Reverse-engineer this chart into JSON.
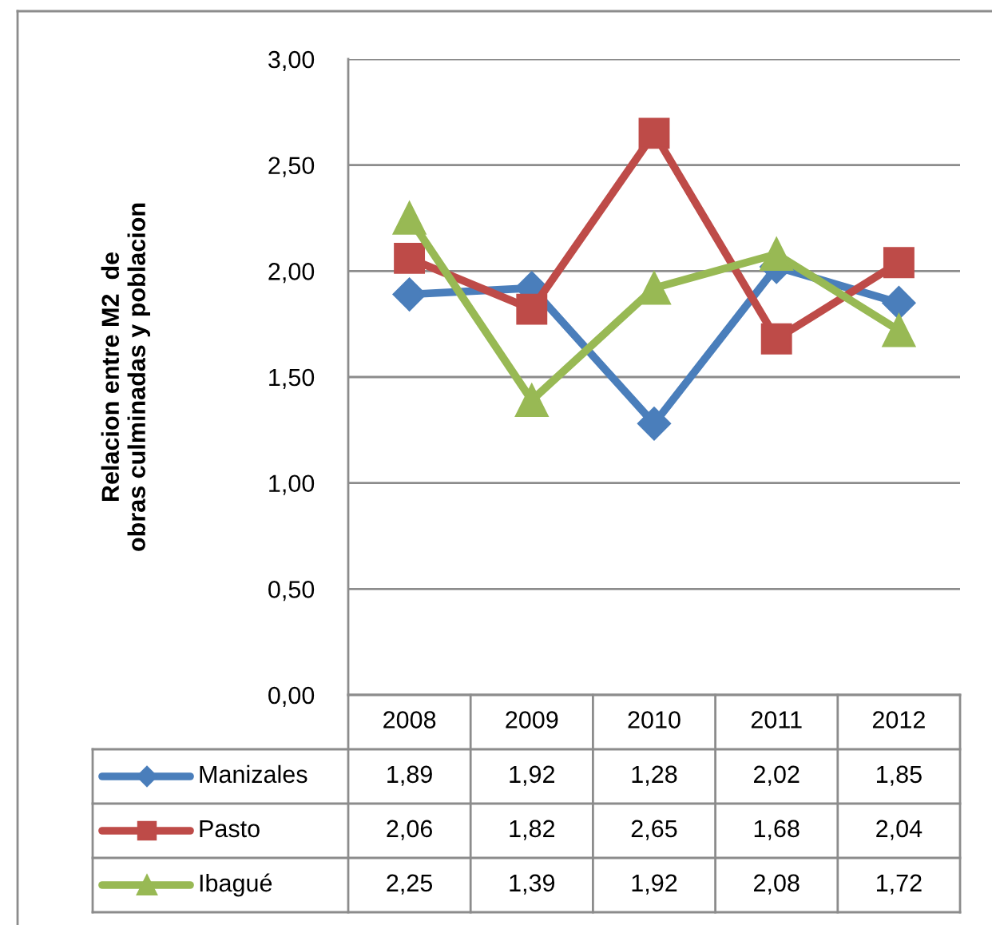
{
  "chart_data": {
    "type": "line",
    "ylabel": "Relacion entre M2  de\nobras culminadas y poblacion",
    "categories": [
      "2008",
      "2009",
      "2010",
      "2011",
      "2012"
    ],
    "series": [
      {
        "name": "Manizales",
        "color": "#4a7ebb",
        "marker": "diamond",
        "values": [
          1.89,
          1.92,
          1.28,
          2.02,
          1.85
        ],
        "value_labels": [
          "1,89",
          "1,92",
          "1,28",
          "2,02",
          "1,85"
        ]
      },
      {
        "name": "Pasto",
        "color": "#be4b48",
        "marker": "square",
        "values": [
          2.06,
          1.82,
          2.65,
          1.68,
          2.04
        ],
        "value_labels": [
          "2,06",
          "1,82",
          "2,65",
          "1,68",
          "2,04"
        ]
      },
      {
        "name": "Ibagué",
        "color": "#98b954",
        "marker": "triangle",
        "values": [
          2.25,
          1.39,
          1.92,
          2.08,
          1.72
        ],
        "value_labels": [
          "2,25",
          "1,39",
          "1,92",
          "2,08",
          "1,72"
        ]
      }
    ],
    "ylim": [
      0,
      3
    ],
    "yticks": [
      {
        "value": 0,
        "label": "0,00"
      },
      {
        "value": 0.5,
        "label": "0,50"
      },
      {
        "value": 1,
        "label": "1,00"
      },
      {
        "value": 1.5,
        "label": "1,50"
      },
      {
        "value": 2,
        "label": "2,00"
      },
      {
        "value": 2.5,
        "label": "2,50"
      },
      {
        "value": 3,
        "label": "3,00"
      }
    ],
    "grid": "y",
    "legend": "bottom",
    "line_style": "solid"
  }
}
